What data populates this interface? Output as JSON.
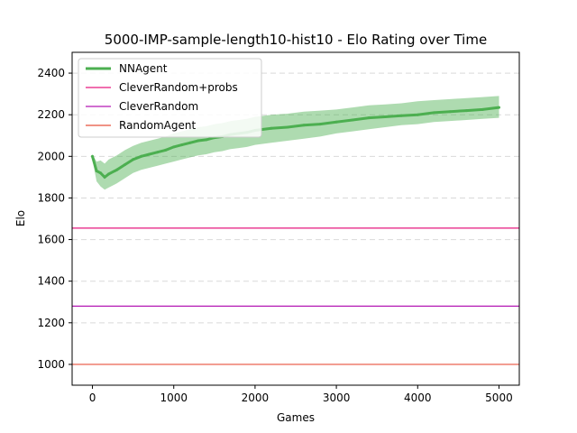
{
  "chart_data": {
    "type": "line",
    "title": "5000-IMP-sample-length10-hist10 - Elo Rating over Time",
    "xlabel": "Games",
    "ylabel": "Elo",
    "xlim": [
      -250,
      5250
    ],
    "ylim": [
      900,
      2500
    ],
    "xticks": [
      0,
      1000,
      2000,
      3000,
      4000,
      5000
    ],
    "xtick_labels": [
      "0",
      "1000",
      "2000",
      "3000",
      "4000",
      "5000"
    ],
    "yticks": [
      1000,
      1200,
      1400,
      1600,
      1800,
      2000,
      2200,
      2400
    ],
    "ytick_labels": [
      "1000",
      "1200",
      "1400",
      "1600",
      "1800",
      "2000",
      "2200",
      "2400"
    ],
    "grid": "y-dashed",
    "legend": "top-left",
    "series": [
      {
        "name": "NNAgent",
        "kind": "line-with-band",
        "color": "#4caf50",
        "x": [
          0,
          50,
          100,
          150,
          200,
          300,
          400,
          500,
          600,
          700,
          800,
          900,
          1000,
          1100,
          1200,
          1300,
          1400,
          1500,
          1600,
          1700,
          1800,
          1900,
          2000,
          2200,
          2400,
          2600,
          2800,
          3000,
          3200,
          3400,
          3600,
          3800,
          4000,
          4200,
          4400,
          4600,
          4800,
          5000
        ],
        "y": [
          2000,
          1930,
          1920,
          1900,
          1915,
          1935,
          1960,
          1985,
          2000,
          2010,
          2020,
          2030,
          2045,
          2055,
          2065,
          2075,
          2080,
          2090,
          2095,
          2105,
          2110,
          2115,
          2125,
          2135,
          2140,
          2150,
          2155,
          2165,
          2175,
          2185,
          2190,
          2195,
          2200,
          2210,
          2215,
          2220,
          2225,
          2235
        ],
        "lower": [
          1985,
          1880,
          1855,
          1840,
          1850,
          1870,
          1895,
          1920,
          1935,
          1945,
          1955,
          1965,
          1975,
          1985,
          1995,
          2005,
          2010,
          2020,
          2025,
          2035,
          2040,
          2045,
          2055,
          2065,
          2075,
          2085,
          2095,
          2110,
          2120,
          2130,
          2140,
          2150,
          2155,
          2165,
          2170,
          2175,
          2180,
          2185
        ],
        "upper": [
          2010,
          1975,
          1980,
          1965,
          1985,
          2005,
          2030,
          2050,
          2065,
          2075,
          2085,
          2095,
          2110,
          2120,
          2130,
          2140,
          2145,
          2155,
          2160,
          2170,
          2175,
          2180,
          2190,
          2200,
          2205,
          2215,
          2220,
          2225,
          2235,
          2245,
          2250,
          2255,
          2265,
          2270,
          2275,
          2280,
          2285,
          2290
        ]
      },
      {
        "name": "CleverRandom+probs",
        "kind": "hline",
        "color": "#e6197f",
        "value": 1655
      },
      {
        "name": "CleverRandom",
        "kind": "hline",
        "color": "#b419b4",
        "value": 1280
      },
      {
        "name": "RandomAgent",
        "kind": "hline",
        "color": "#e8503c",
        "value": 1000
      }
    ]
  }
}
